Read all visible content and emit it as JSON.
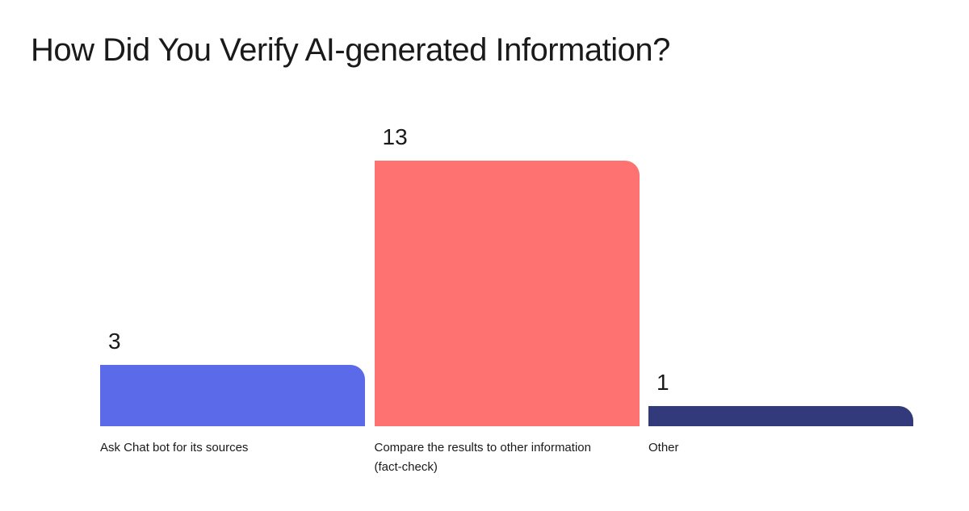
{
  "title": "How Did You Verify AI-generated Information?",
  "chart_data": {
    "type": "bar",
    "categories": [
      "Ask Chat bot for its sources",
      "Compare the results to other information (fact-check)",
      "Other"
    ],
    "values": [
      3,
      13,
      1
    ],
    "colors": [
      "#5a6ae8",
      "#ff7272",
      "#323a7c"
    ]
  }
}
